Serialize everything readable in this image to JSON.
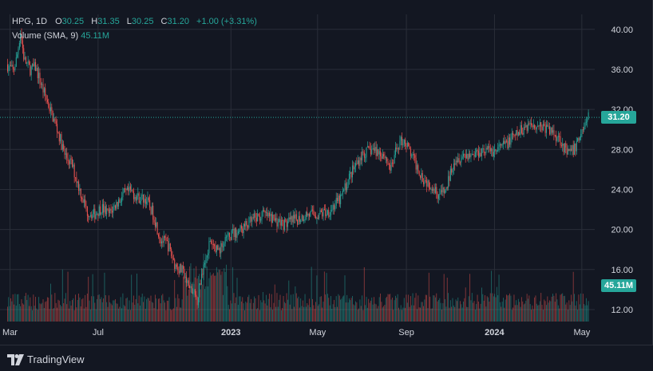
{
  "legend": {
    "symbol": "HPG, 1D",
    "open_label": "O",
    "open": "30.25",
    "high_label": "H",
    "high": "31.35",
    "low_label": "L",
    "low": "30.25",
    "close_label": "C",
    "close": "31.20",
    "change": "+1.00 (+3.31%)",
    "volume_label": "Volume (SMA, 9)",
    "volume_value": "45.11M"
  },
  "price_badge": "31.20",
  "volume_badge": "45.11M",
  "branding": "TradingView",
  "colors": {
    "background": "#131722",
    "up": "#26a69a",
    "down": "#ef5350",
    "text": "#d1d4dc",
    "grid": "#2a2e39"
  },
  "chart_data": {
    "type": "candlestick",
    "y_ticks": [
      "40.00",
      "36.00",
      "32.00",
      "28.00",
      "24.00",
      "20.00",
      "16.00",
      "12.00"
    ],
    "y_tick_values": [
      40,
      36,
      32,
      28,
      24,
      20,
      16,
      12
    ],
    "ylim": [
      10.8,
      41.5
    ],
    "x_ticks": [
      {
        "label": "Mar",
        "bold": false,
        "date": "2022-03-01"
      },
      {
        "label": "Jul",
        "bold": false,
        "date": "2022-07-01"
      },
      {
        "label": "2023",
        "bold": true,
        "date": "2023-01-01"
      },
      {
        "label": "May",
        "bold": false,
        "date": "2023-05-01"
      },
      {
        "label": "Sep",
        "bold": false,
        "date": "2023-09-01"
      },
      {
        "label": "2024",
        "bold": true,
        "date": "2024-01-01"
      },
      {
        "label": "May",
        "bold": false,
        "date": "2024-05-01"
      }
    ],
    "x_range": [
      "2022-02-24",
      "2024-05-10"
    ],
    "last_price": 31.2,
    "price_path": [
      [
        "2022-02-24",
        36.5
      ],
      [
        "2022-03-05",
        35.8
      ],
      [
        "2022-03-10",
        37.2
      ],
      [
        "2022-03-15",
        39.8
      ],
      [
        "2022-03-20",
        37.0
      ],
      [
        "2022-03-28",
        36.0
      ],
      [
        "2022-04-05",
        36.2
      ],
      [
        "2022-04-15",
        34.0
      ],
      [
        "2022-04-25",
        32.0
      ],
      [
        "2022-05-05",
        30.0
      ],
      [
        "2022-05-15",
        27.5
      ],
      [
        "2022-05-25",
        26.5
      ],
      [
        "2022-06-05",
        24.0
      ],
      [
        "2022-06-15",
        21.8
      ],
      [
        "2022-06-25",
        21.5
      ],
      [
        "2022-07-05",
        22.2
      ],
      [
        "2022-07-15",
        21.5
      ],
      [
        "2022-07-25",
        22.5
      ],
      [
        "2022-08-05",
        23.5
      ],
      [
        "2022-08-15",
        23.8
      ],
      [
        "2022-08-25",
        23.2
      ],
      [
        "2022-09-05",
        23.0
      ],
      [
        "2022-09-15",
        21.5
      ],
      [
        "2022-09-25",
        19.0
      ],
      [
        "2022-10-05",
        18.5
      ],
      [
        "2022-10-15",
        16.5
      ],
      [
        "2022-10-25",
        15.8
      ],
      [
        "2022-11-05",
        14.0
      ],
      [
        "2022-11-15",
        13.0
      ],
      [
        "2022-11-22",
        16.0
      ],
      [
        "2022-12-01",
        18.5
      ],
      [
        "2022-12-15",
        18.0
      ],
      [
        "2023-01-01",
        19.5
      ],
      [
        "2023-01-15",
        20.0
      ],
      [
        "2023-02-01",
        21.0
      ],
      [
        "2023-02-15",
        21.5
      ],
      [
        "2023-03-01",
        21.0
      ],
      [
        "2023-03-15",
        20.5
      ],
      [
        "2023-04-01",
        21.0
      ],
      [
        "2023-04-15",
        21.5
      ],
      [
        "2023-05-01",
        21.5
      ],
      [
        "2023-05-15",
        21.8
      ],
      [
        "2023-06-01",
        23.0
      ],
      [
        "2023-06-15",
        25.5
      ],
      [
        "2023-07-01",
        27.5
      ],
      [
        "2023-07-15",
        28.0
      ],
      [
        "2023-08-01",
        27.5
      ],
      [
        "2023-08-10",
        26.0
      ],
      [
        "2023-08-20",
        28.5
      ],
      [
        "2023-08-28",
        29.0
      ],
      [
        "2023-09-10",
        27.0
      ],
      [
        "2023-09-25",
        25.0
      ],
      [
        "2023-10-05",
        24.5
      ],
      [
        "2023-10-15",
        23.5
      ],
      [
        "2023-10-25",
        23.8
      ],
      [
        "2023-11-05",
        27.0
      ],
      [
        "2023-11-20",
        27.5
      ],
      [
        "2023-12-01",
        27.5
      ],
      [
        "2023-12-15",
        28.0
      ],
      [
        "2024-01-01",
        27.8
      ],
      [
        "2024-01-15",
        28.5
      ],
      [
        "2024-02-01",
        29.5
      ],
      [
        "2024-02-15",
        30.5
      ],
      [
        "2024-03-01",
        30.5
      ],
      [
        "2024-03-15",
        30.0
      ],
      [
        "2024-03-25",
        29.5
      ],
      [
        "2024-04-01",
        29.0
      ],
      [
        "2024-04-10",
        27.5
      ],
      [
        "2024-04-20",
        28.0
      ],
      [
        "2024-05-01",
        30.0
      ],
      [
        "2024-05-10",
        31.2
      ]
    ]
  }
}
